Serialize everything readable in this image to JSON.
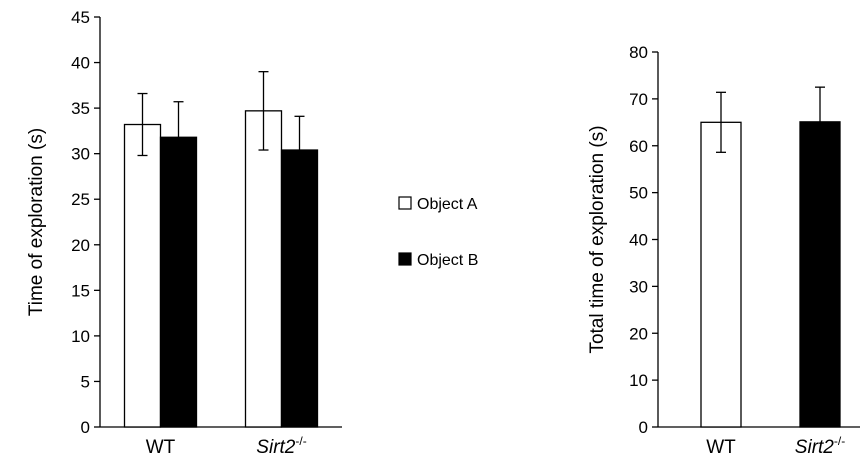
{
  "chart_data": [
    {
      "type": "bar",
      "categories": [
        "WT",
        "Sirt2-/-"
      ],
      "category_labels": [
        {
          "base": "WT",
          "italic": "",
          "sup": ""
        },
        {
          "base": "",
          "italic": "Sirt2",
          "sup": "-/-"
        }
      ],
      "ylabel": "Time of exploration (s)",
      "ylim": [
        0,
        45
      ],
      "yticks": [
        0,
        5,
        10,
        15,
        20,
        25,
        30,
        35,
        40,
        45
      ],
      "grid": false,
      "legend_position": "right",
      "series": [
        {
          "name": "Object A",
          "fill": "#ffffff",
          "values": [
            33.2,
            34.7
          ],
          "errors": [
            3.4,
            4.3
          ]
        },
        {
          "name": "Object B",
          "fill": "#000000",
          "values": [
            31.8,
            30.4
          ],
          "errors": [
            3.9,
            3.7
          ]
        }
      ]
    },
    {
      "type": "bar",
      "categories": [
        "WT",
        "Sirt2-/-"
      ],
      "category_labels": [
        {
          "base": "WT",
          "italic": "",
          "sup": ""
        },
        {
          "base": "",
          "italic": "Sirt2",
          "sup": "-/-"
        }
      ],
      "ylabel": "Total time of exploration (s)",
      "ylim": [
        0,
        80
      ],
      "yticks": [
        0,
        10,
        20,
        30,
        40,
        50,
        60,
        70,
        80
      ],
      "grid": false,
      "bar_fills": [
        "#ffffff",
        "#000000"
      ],
      "values": [
        65.0,
        65.1
      ],
      "errors": [
        6.4,
        7.4
      ]
    }
  ]
}
